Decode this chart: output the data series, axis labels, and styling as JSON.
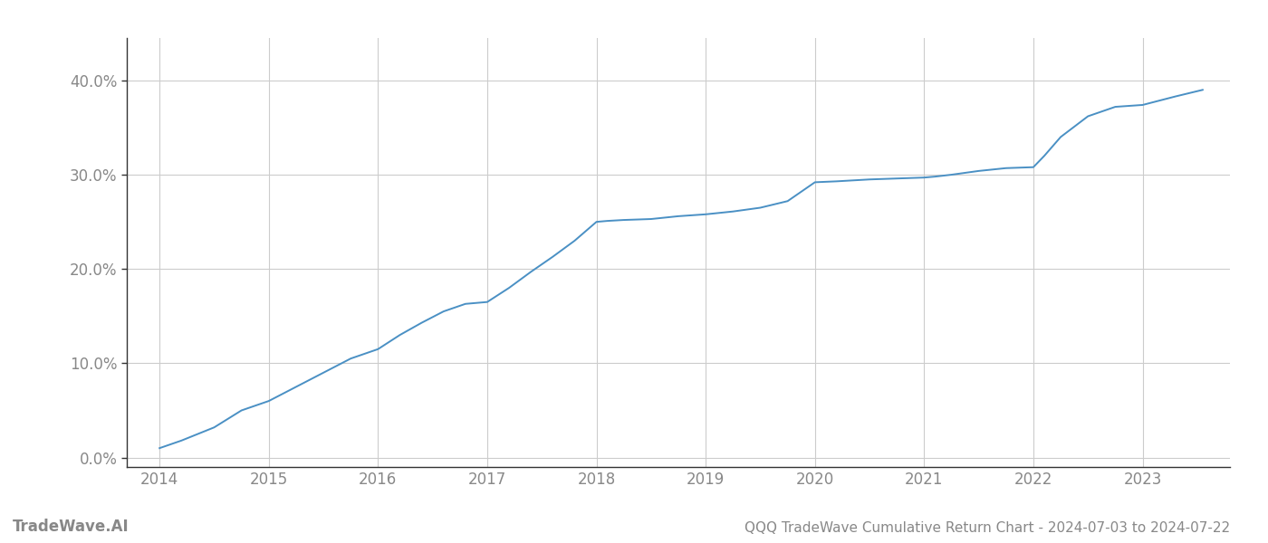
{
  "title": "QQQ TradeWave Cumulative Return Chart - 2024-07-03 to 2024-07-22",
  "watermark": "TradeWave.AI",
  "line_color": "#4a90c4",
  "background_color": "#ffffff",
  "grid_color": "#cccccc",
  "x_values": [
    2014.0,
    2014.2,
    2014.5,
    2014.75,
    2015.0,
    2015.25,
    2015.5,
    2015.75,
    2016.0,
    2016.2,
    2016.4,
    2016.6,
    2016.8,
    2017.0,
    2017.2,
    2017.4,
    2017.6,
    2017.8,
    2018.0,
    2018.1,
    2018.25,
    2018.5,
    2018.75,
    2019.0,
    2019.25,
    2019.5,
    2019.75,
    2020.0,
    2020.2,
    2020.5,
    2020.75,
    2021.0,
    2021.1,
    2021.25,
    2021.5,
    2021.75,
    2022.0,
    2022.1,
    2022.25,
    2022.5,
    2022.75,
    2023.0,
    2023.3,
    2023.55
  ],
  "y_values": [
    0.01,
    0.018,
    0.032,
    0.05,
    0.06,
    0.075,
    0.09,
    0.105,
    0.115,
    0.13,
    0.143,
    0.155,
    0.163,
    0.165,
    0.18,
    0.197,
    0.213,
    0.23,
    0.25,
    0.251,
    0.252,
    0.253,
    0.256,
    0.258,
    0.261,
    0.265,
    0.272,
    0.292,
    0.293,
    0.295,
    0.296,
    0.297,
    0.298,
    0.3,
    0.304,
    0.307,
    0.308,
    0.32,
    0.34,
    0.362,
    0.372,
    0.374,
    0.383,
    0.39
  ],
  "xlim": [
    2013.7,
    2023.8
  ],
  "ylim": [
    -0.01,
    0.445
  ],
  "yticks": [
    0.0,
    0.1,
    0.2,
    0.3,
    0.4
  ],
  "xticks": [
    2014,
    2015,
    2016,
    2017,
    2018,
    2019,
    2020,
    2021,
    2022,
    2023
  ],
  "tick_label_color": "#888888",
  "axis_label_fontsize": 12,
  "title_fontsize": 11,
  "watermark_fontsize": 12
}
